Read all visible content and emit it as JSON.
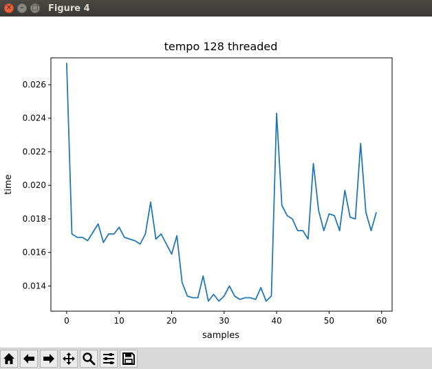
{
  "window": {
    "title": "Figure 4",
    "close_label": "✕",
    "min_label": "–",
    "max_label": "□"
  },
  "toolbar": {
    "buttons": [
      {
        "name": "home-button",
        "icon": "home-icon"
      },
      {
        "name": "back-button",
        "icon": "back-arrow-icon"
      },
      {
        "name": "forward-button",
        "icon": "forward-arrow-icon"
      },
      {
        "name": "pan-button",
        "icon": "move-icon"
      },
      {
        "name": "zoom-button",
        "icon": "zoom-icon"
      },
      {
        "name": "configure-subplots-button",
        "icon": "sliders-icon"
      },
      {
        "name": "save-button",
        "icon": "save-icon"
      }
    ]
  },
  "chart_data": {
    "type": "line",
    "title": "tempo 128 threaded",
    "xlabel": "samples",
    "ylabel": "time",
    "xlim": [
      -3,
      62
    ],
    "ylim": [
      0.0125,
      0.0276
    ],
    "xticks": [
      0,
      10,
      20,
      30,
      40,
      50,
      60
    ],
    "yticks": [
      0.014,
      0.016,
      0.018,
      0.02,
      0.022,
      0.024,
      0.026
    ],
    "ytick_labels": [
      "0.014",
      "0.016",
      "0.018",
      "0.020",
      "0.022",
      "0.024",
      "0.026"
    ],
    "grid": false,
    "color": "#1f77b4",
    "series": [
      {
        "x": [
          0,
          1,
          2,
          3,
          4,
          5,
          6,
          7,
          8,
          9,
          10,
          11,
          12,
          13,
          14,
          15,
          16,
          17,
          18,
          19,
          20,
          21,
          22,
          23,
          24,
          25,
          26,
          27,
          28,
          29,
          30,
          31,
          32,
          33,
          34,
          35,
          36,
          37,
          38,
          39,
          40,
          41,
          42,
          43,
          44,
          45,
          46,
          47,
          48,
          49,
          50,
          51,
          52,
          53,
          54,
          55,
          56,
          57,
          58,
          59
        ],
        "values": [
          0.0273,
          0.0171,
          0.0169,
          0.0169,
          0.0167,
          0.0172,
          0.0177,
          0.0166,
          0.0171,
          0.0171,
          0.0175,
          0.0169,
          0.0168,
          0.0167,
          0.0165,
          0.0171,
          0.019,
          0.0168,
          0.0171,
          0.0165,
          0.0159,
          0.017,
          0.0142,
          0.0134,
          0.0133,
          0.0133,
          0.0146,
          0.0131,
          0.0135,
          0.0131,
          0.0134,
          0.014,
          0.0134,
          0.0132,
          0.0133,
          0.0133,
          0.0132,
          0.0139,
          0.0131,
          0.0134,
          0.0243,
          0.0188,
          0.0182,
          0.018,
          0.0173,
          0.0173,
          0.0168,
          0.0213,
          0.0185,
          0.0173,
          0.0183,
          0.0182,
          0.0173,
          0.0197,
          0.0181,
          0.018,
          0.0225,
          0.0184,
          0.0173,
          0.0184
        ]
      }
    ]
  }
}
